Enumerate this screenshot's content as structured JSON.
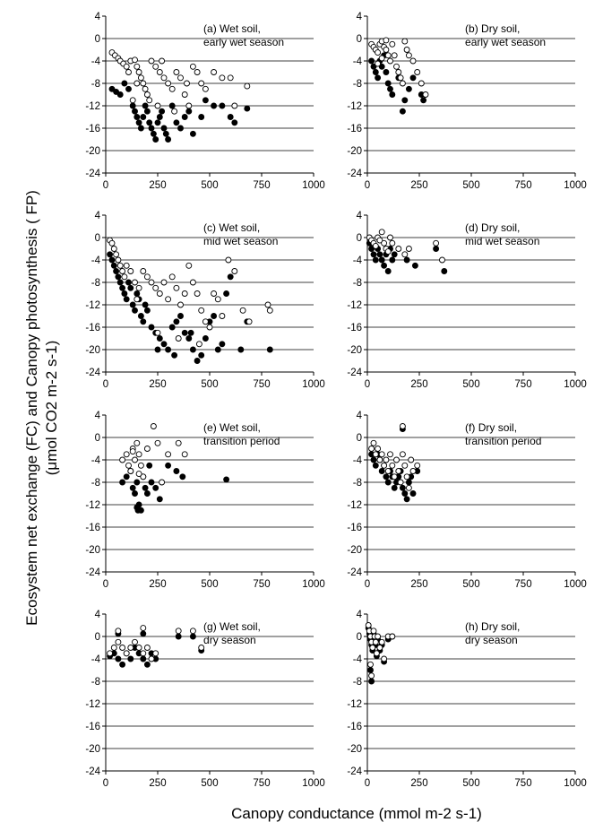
{
  "figure": {
    "xlabel": "Canopy conductance (mmol m-2 s-1)",
    "ylabel_line1": "Ecosystem net exchange (FC) and Canopy photosynthesis ( FP)",
    "ylabel_line2": "(μmol CO2 m-2 s-1)",
    "colors": {
      "filled": "#000000",
      "open_fill": "#ffffff",
      "grid": "#000000"
    }
  },
  "chart_data": [
    {
      "type": "scatter",
      "panel": "a",
      "annotation_line1": "(a) Wet soil,",
      "annotation_line2": "early wet season",
      "xlim": [
        0,
        1000
      ],
      "ylim": [
        -24,
        4
      ],
      "xticks": [
        "0",
        "250",
        "500",
        "750",
        "1000"
      ],
      "yticks": [
        "4",
        "0",
        "-4",
        "-8",
        "-12",
        "-16",
        "-20",
        "-24"
      ],
      "series": [
        {
          "marker": "open",
          "x": [
            30,
            45,
            60,
            70,
            85,
            100,
            110,
            120,
            140,
            150,
            160,
            170,
            180,
            190,
            200,
            220,
            240,
            260,
            280,
            300,
            320,
            340,
            360,
            380,
            400,
            420,
            440,
            460,
            480,
            520,
            560,
            600,
            620,
            680,
            130,
            210,
            250,
            330,
            390,
            150,
            270
          ],
          "y": [
            -2.5,
            -3,
            -3.5,
            -4,
            -4.5,
            -5,
            -6,
            -4,
            -3.8,
            -5,
            -6,
            -7,
            -8,
            -9,
            -10,
            -4,
            -5,
            -6,
            -7,
            -8,
            -9,
            -6,
            -7,
            -10,
            -12,
            -5,
            -6,
            -8,
            -9,
            -6,
            -7,
            -7,
            -12,
            -8.5,
            -11,
            -11,
            -12,
            -13,
            -8,
            -8,
            -4
          ]
        },
        {
          "marker": "filled",
          "x": [
            30,
            50,
            70,
            90,
            110,
            130,
            140,
            150,
            160,
            170,
            180,
            190,
            200,
            210,
            220,
            230,
            240,
            250,
            260,
            270,
            280,
            290,
            300,
            320,
            340,
            360,
            380,
            400,
            420,
            460,
            480,
            520,
            600,
            620,
            680,
            560
          ],
          "y": [
            -9,
            -9.5,
            -10,
            -8,
            -9,
            -12,
            -13,
            -14,
            -15,
            -16,
            -14,
            -12,
            -13,
            -15,
            -16,
            -17,
            -18,
            -15,
            -14,
            -13,
            -16,
            -17,
            -18,
            -12,
            -15,
            -16,
            -14,
            -13,
            -17,
            -14,
            -11,
            -12,
            -14,
            -15,
            -12.5,
            -12
          ]
        }
      ]
    },
    {
      "type": "scatter",
      "panel": "b",
      "annotation_line1": "(b) Dry soil,",
      "annotation_line2": "early wet season",
      "xlim": [
        0,
        1000
      ],
      "ylim": [
        -24,
        4
      ],
      "xticks": [
        "0",
        "250",
        "500",
        "750",
        "1000"
      ],
      "yticks": [
        "4",
        "0",
        "-4",
        "-8",
        "-12",
        "-16",
        "-20",
        "-24"
      ],
      "series": [
        {
          "marker": "open",
          "x": [
            20,
            30,
            40,
            50,
            60,
            70,
            80,
            90,
            100,
            110,
            120,
            130,
            140,
            150,
            160,
            170,
            180,
            190,
            200,
            220,
            240,
            260,
            280,
            90,
            70,
            50
          ],
          "y": [
            -1,
            -1.5,
            -2,
            -2.5,
            -1,
            -0.5,
            -1.5,
            -2,
            -3,
            -4,
            -1,
            -3,
            -5,
            -6,
            -7,
            -8,
            -0.5,
            -2,
            -3,
            -4,
            -6,
            -8,
            -10,
            -0.3,
            -3.5,
            -4.5
          ]
        },
        {
          "marker": "filled",
          "x": [
            20,
            30,
            40,
            50,
            60,
            70,
            80,
            90,
            100,
            110,
            120,
            150,
            170,
            180,
            200,
            220,
            260,
            270
          ],
          "y": [
            -4,
            -5,
            -6,
            -7,
            -4,
            -5,
            -3,
            -6,
            -8,
            -9,
            -10,
            -7,
            -13,
            -11,
            -9,
            -7,
            -10,
            -11
          ]
        }
      ]
    },
    {
      "type": "scatter",
      "panel": "c",
      "annotation_line1": "(c) Wet soil,",
      "annotation_line2": "mid wet season",
      "xlim": [
        0,
        1000
      ],
      "ylim": [
        -24,
        4
      ],
      "xticks": [
        "0",
        "250",
        "500",
        "750",
        "1000"
      ],
      "yticks": [
        "4",
        "0",
        "-4",
        "-8",
        "-12",
        "-16",
        "-20",
        "-24"
      ],
      "series": [
        {
          "marker": "open",
          "x": [
            20,
            30,
            40,
            50,
            60,
            70,
            80,
            90,
            100,
            120,
            140,
            160,
            180,
            200,
            220,
            240,
            260,
            280,
            300,
            320,
            340,
            360,
            380,
            400,
            420,
            440,
            460,
            480,
            500,
            520,
            540,
            560,
            590,
            620,
            660,
            690,
            780,
            790,
            250,
            350,
            450,
            150
          ],
          "y": [
            -0.5,
            -1,
            -2,
            -3,
            -4,
            -5,
            -6,
            -7,
            -5,
            -6,
            -8,
            -9,
            -6,
            -7,
            -8,
            -9,
            -10,
            -8,
            -11,
            -7,
            -9,
            -12,
            -10,
            -5,
            -8,
            -10,
            -13,
            -15,
            -16,
            -10,
            -11,
            -14,
            -4,
            -6,
            -13,
            -15,
            -12,
            -13,
            -17,
            -18,
            -19,
            -11
          ]
        },
        {
          "marker": "filled",
          "x": [
            20,
            30,
            40,
            50,
            60,
            70,
            80,
            90,
            100,
            110,
            120,
            130,
            140,
            150,
            160,
            170,
            180,
            190,
            200,
            220,
            240,
            260,
            280,
            300,
            320,
            340,
            360,
            380,
            400,
            420,
            440,
            460,
            480,
            500,
            520,
            540,
            560,
            580,
            600,
            650,
            680,
            790,
            250,
            330,
            410
          ],
          "y": [
            -3,
            -4,
            -5,
            -6,
            -7,
            -8,
            -9,
            -10,
            -11,
            -8,
            -9,
            -12,
            -13,
            -10,
            -11,
            -14,
            -15,
            -12,
            -13,
            -16,
            -17,
            -18,
            -19,
            -20,
            -16,
            -15,
            -14,
            -17,
            -18,
            -20,
            -22,
            -21,
            -18,
            -15,
            -14,
            -20,
            -19,
            -10,
            -7,
            -20,
            -15,
            -20,
            -20,
            -21,
            -17
          ]
        }
      ]
    },
    {
      "type": "scatter",
      "panel": "d",
      "annotation_line1": "(d) Dry soil,",
      "annotation_line2": "mid wet season",
      "xlim": [
        0,
        1000
      ],
      "ylim": [
        -24,
        4
      ],
      "xticks": [
        "0",
        "250",
        "500",
        "750",
        "1000"
      ],
      "yticks": [
        "4",
        "0",
        "-4",
        "-8",
        "-12",
        "-16",
        "-20",
        "-24"
      ],
      "series": [
        {
          "marker": "open",
          "x": [
            10,
            20,
            30,
            40,
            50,
            60,
            70,
            80,
            90,
            100,
            110,
            120,
            150,
            180,
            330,
            360,
            200
          ],
          "y": [
            0,
            -0.5,
            -1,
            -1.5,
            0,
            -0.5,
            1,
            -1,
            -2,
            -2.5,
            0,
            -1,
            -2,
            -3,
            -1,
            -4,
            -2
          ]
        },
        {
          "marker": "filled",
          "x": [
            10,
            20,
            30,
            40,
            50,
            60,
            70,
            80,
            90,
            100,
            110,
            120,
            130,
            230,
            330,
            370,
            190
          ],
          "y": [
            -1,
            -2,
            -3,
            -4,
            -2,
            -3,
            -4,
            -5,
            -3,
            -6,
            -2,
            -4,
            -3,
            -5,
            -2,
            -6,
            -4
          ]
        }
      ]
    },
    {
      "type": "scatter",
      "panel": "e",
      "annotation_line1": "(e) Wet soil,",
      "annotation_line2": "transition period",
      "xlim": [
        0,
        1000
      ],
      "ylim": [
        -24,
        4
      ],
      "xticks": [
        "0",
        "250",
        "500",
        "750",
        "1000"
      ],
      "yticks": [
        "4",
        "0",
        "-4",
        "-8",
        "-12",
        "-16",
        "-20",
        "-24"
      ],
      "series": [
        {
          "marker": "open",
          "x": [
            80,
            100,
            110,
            120,
            130,
            140,
            150,
            160,
            170,
            180,
            200,
            230,
            250,
            270,
            300,
            350,
            380,
            130,
            160
          ],
          "y": [
            -4,
            -3,
            -5,
            -6,
            -2,
            -4,
            -1,
            -3,
            -5,
            -7,
            -2,
            2,
            -1,
            -8,
            -3,
            -1,
            -3,
            -2.5,
            -6.5
          ]
        },
        {
          "marker": "filled",
          "x": [
            80,
            100,
            120,
            130,
            140,
            150,
            160,
            170,
            180,
            190,
            200,
            210,
            220,
            240,
            260,
            300,
            340,
            370,
            580,
            150,
            155
          ],
          "y": [
            -8,
            -7,
            -6,
            -9,
            -10,
            -8,
            -12,
            -13,
            -7,
            -9,
            -10,
            -5,
            -8,
            -9,
            -11,
            -5,
            -6,
            -7,
            -7.5,
            -12.5,
            -13
          ]
        }
      ]
    },
    {
      "type": "scatter",
      "panel": "f",
      "annotation_line1": "(f) Dry soil,",
      "annotation_line2": "transition period",
      "xlim": [
        0,
        1000
      ],
      "ylim": [
        -24,
        4
      ],
      "xticks": [
        "0",
        "250",
        "500",
        "750",
        "1000"
      ],
      "yticks": [
        "4",
        "0",
        "-4",
        "-8",
        "-12",
        "-16",
        "-20",
        "-24"
      ],
      "series": [
        {
          "marker": "open",
          "x": [
            20,
            30,
            40,
            50,
            60,
            70,
            80,
            90,
            100,
            110,
            120,
            130,
            140,
            150,
            160,
            170,
            180,
            190,
            200,
            210,
            220,
            240,
            170
          ],
          "y": [
            -2,
            -1,
            -3,
            -2,
            -4,
            -3,
            -5,
            -4,
            -6,
            -3,
            -5,
            -7,
            -4,
            -6,
            -8,
            -3,
            -5,
            -7,
            -9,
            -4,
            -6,
            -5,
            2
          ]
        },
        {
          "marker": "filled",
          "x": [
            20,
            30,
            40,
            50,
            60,
            70,
            80,
            90,
            100,
            110,
            120,
            130,
            140,
            150,
            160,
            170,
            180,
            190,
            200,
            210,
            220,
            240,
            170
          ],
          "y": [
            -3,
            -4,
            -5,
            -3,
            -4,
            -6,
            -5,
            -7,
            -8,
            -6,
            -7,
            -9,
            -8,
            -7,
            -6,
            -9,
            -10,
            -11,
            -8,
            -7,
            -10,
            -6,
            1.5
          ]
        }
      ]
    },
    {
      "type": "scatter",
      "panel": "g",
      "annotation_line1": "(g) Wet soil,",
      "annotation_line2": "dry season",
      "xlim": [
        0,
        1000
      ],
      "ylim": [
        -24,
        4
      ],
      "xticks": [
        "0",
        "250",
        "500",
        "750",
        "1000"
      ],
      "yticks": [
        "4",
        "0",
        "-4",
        "-8",
        "-12",
        "-16",
        "-20",
        "-24"
      ],
      "series": [
        {
          "marker": "open",
          "x": [
            20,
            40,
            60,
            80,
            100,
            120,
            140,
            160,
            180,
            200,
            220,
            240,
            60,
            180,
            350,
            420,
            460
          ],
          "y": [
            -3,
            -2,
            -1,
            -2,
            -3,
            -2,
            -1,
            -2,
            -3,
            -2,
            -4,
            -3,
            1,
            1.5,
            1,
            1,
            -2
          ]
        },
        {
          "marker": "filled",
          "x": [
            20,
            40,
            60,
            80,
            100,
            120,
            140,
            160,
            180,
            200,
            220,
            240,
            60,
            180,
            350,
            420,
            460
          ],
          "y": [
            -3.5,
            -3,
            -4,
            -5,
            -3,
            -4,
            -2,
            -3,
            -4,
            -5,
            -3,
            -4,
            0.5,
            0.5,
            0,
            0,
            -2.5
          ]
        }
      ]
    },
    {
      "type": "scatter",
      "panel": "h",
      "annotation_line1": "(h) Dry soil,",
      "annotation_line2": "dry season",
      "xlim": [
        0,
        1000
      ],
      "ylim": [
        -24,
        4
      ],
      "xticks": [
        "0",
        "250",
        "500",
        "750",
        "1000"
      ],
      "yticks": [
        "4",
        "0",
        "-4",
        "-8",
        "-12",
        "-16",
        "-20",
        "-24"
      ],
      "series": [
        {
          "marker": "open",
          "x": [
            5,
            10,
            15,
            20,
            25,
            30,
            35,
            40,
            45,
            50,
            60,
            70,
            80,
            100,
            120,
            15,
            20
          ],
          "y": [
            2,
            1,
            0,
            -1,
            -2,
            1,
            0,
            -1,
            -3,
            0,
            -2,
            -1,
            -4,
            0,
            0,
            -5,
            -7
          ]
        },
        {
          "marker": "filled",
          "x": [
            5,
            10,
            15,
            20,
            25,
            30,
            35,
            40,
            45,
            50,
            60,
            70,
            80,
            100,
            120,
            15,
            20
          ],
          "y": [
            1.5,
            0.5,
            -0.5,
            -1.5,
            -2.5,
            0.5,
            -0.5,
            -1.5,
            -3.5,
            -0.5,
            -2.5,
            -1.5,
            -4.5,
            -0.5,
            0,
            -6,
            -8
          ]
        }
      ]
    }
  ]
}
